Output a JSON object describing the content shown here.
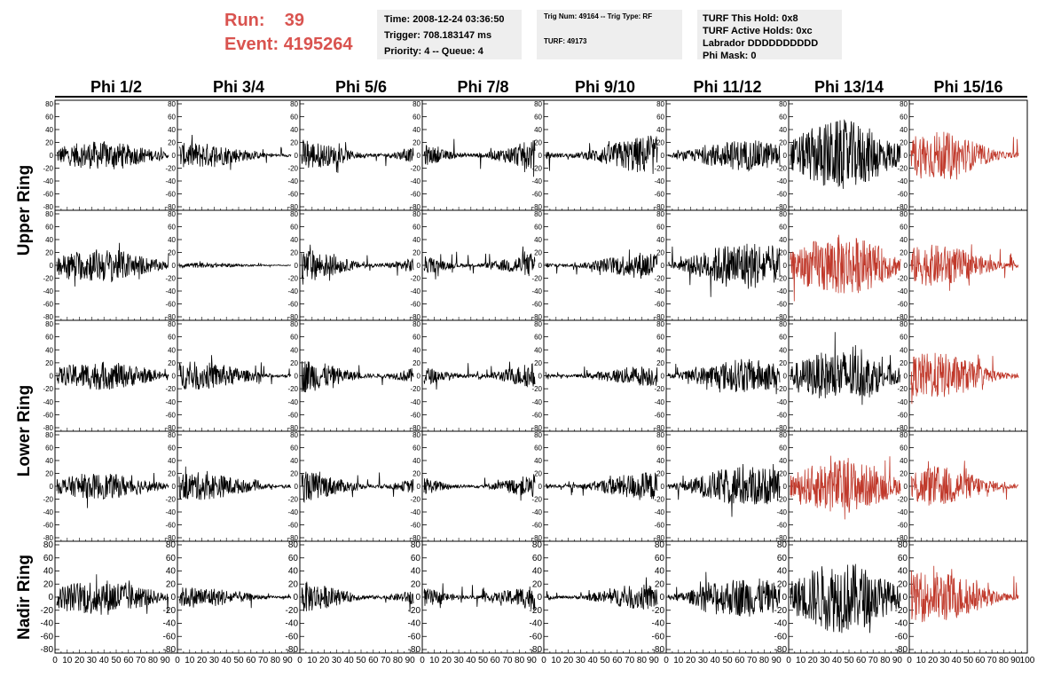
{
  "header": {
    "run_label": "Run:",
    "run_value": "39",
    "event_label": "Event:",
    "event_value": "4195264",
    "accent_color": "#d9534f"
  },
  "info_panel_1": {
    "time": "Time: 2008-12-24 03:36:50",
    "trigger": "Trigger: 708.183147 ms",
    "priority": "Priority: 4 -- Queue: 4"
  },
  "info_panel_2": {
    "trig": "Trig Num: 49164 -- Trig Type: RF",
    "turf": "TURF: 49173"
  },
  "info_panel_3": {
    "hold": "TURF This Hold: 0x8",
    "active": "TURF Active Holds: 0xc",
    "labrador": "Labrador DDDDDDDDDD",
    "phimask": "Phi Mask: 0"
  },
  "chart_data": {
    "type": "line",
    "columns": [
      "Phi 1/2",
      "Phi 3/4",
      "Phi 5/6",
      "Phi 7/8",
      "Phi 9/10",
      "Phi 11/12",
      "Phi 13/14",
      "Phi 15/16"
    ],
    "rows": [
      "Upper Ring",
      "Lower Ring",
      "Nadir Ring"
    ],
    "ylim": [
      -80,
      80
    ],
    "yticks_labeled": [
      "80",
      "60",
      "40",
      "20",
      "0",
      "-20",
      "-40",
      "-60",
      "-80"
    ],
    "xlim": [
      0,
      100
    ],
    "xticks_labeled": [
      "0",
      "10",
      "20",
      "30",
      "40",
      "50",
      "60",
      "70",
      "80",
      "90",
      "100"
    ],
    "trace_colors": {
      "normal": "#000000",
      "highlight": "#c0392b"
    },
    "panels_note": "5 rows x 8 columns of waveform traces; approximate amplitudes",
    "amplitudes": [
      [
        22,
        20,
        26,
        28,
        30,
        24,
        55,
        38
      ],
      [
        26,
        4,
        28,
        24,
        22,
        38,
        48,
        32
      ],
      [
        22,
        22,
        28,
        24,
        16,
        26,
        40,
        36
      ],
      [
        20,
        22,
        26,
        22,
        22,
        32,
        42,
        32
      ],
      [
        28,
        16,
        26,
        24,
        20,
        30,
        55,
        40
      ]
    ],
    "highlighted_panels": [
      [
        0,
        7
      ],
      [
        1,
        6
      ],
      [
        1,
        7
      ],
      [
        2,
        7
      ],
      [
        3,
        6
      ],
      [
        3,
        7
      ],
      [
        4,
        7
      ]
    ]
  }
}
